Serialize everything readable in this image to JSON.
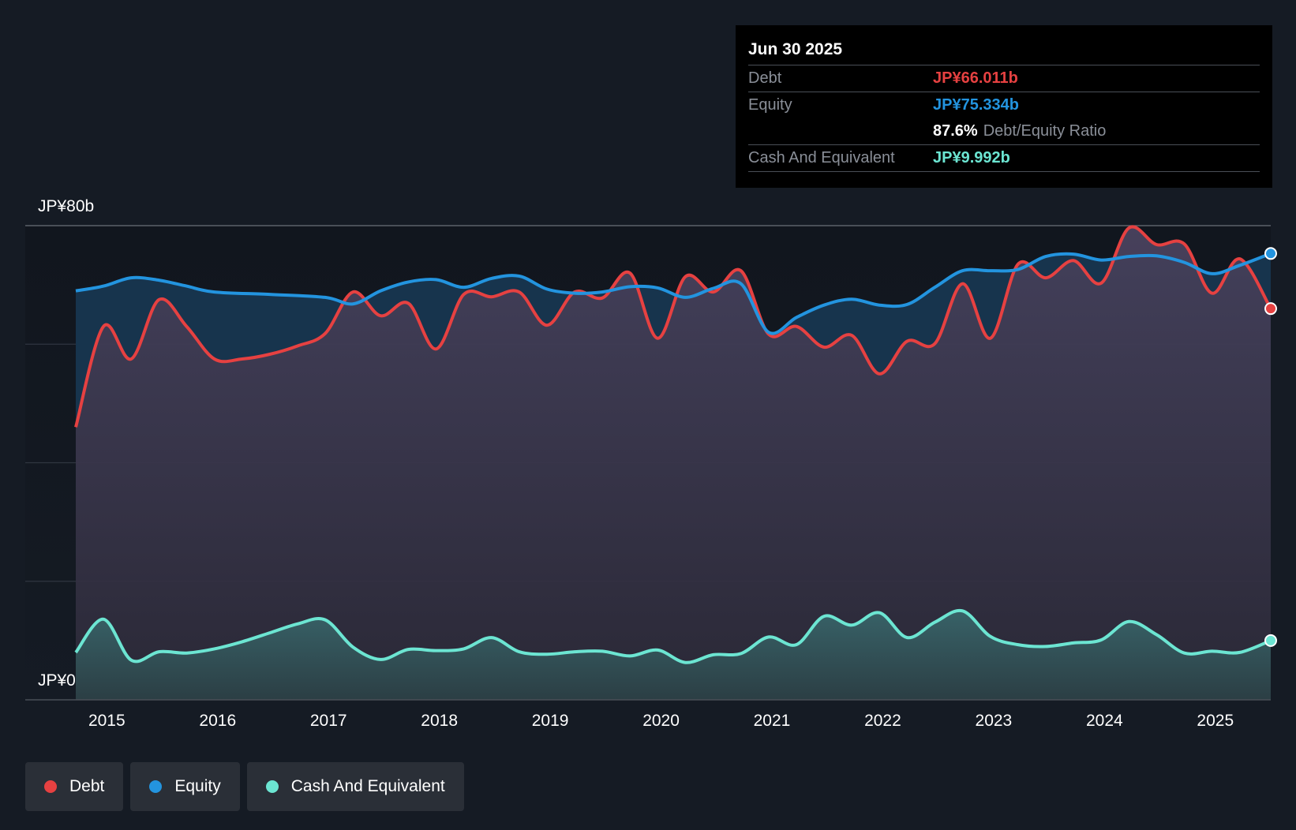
{
  "tooltip": {
    "date": "Jun 30 2025",
    "debt_label": "Debt",
    "debt_value": "JP¥66.011b",
    "equity_label": "Equity",
    "equity_value": "JP¥75.334b",
    "ratio_value": "87.6%",
    "ratio_label": "Debt/Equity Ratio",
    "cash_label": "Cash And Equivalent",
    "cash_value": "JP¥9.992b"
  },
  "legend": [
    {
      "label": "Debt",
      "color": "#e64141"
    },
    {
      "label": "Equity",
      "color": "#2394df"
    },
    {
      "label": "Cash And Equivalent",
      "color": "#6ce5d2"
    }
  ],
  "chart_data": {
    "type": "area",
    "ylim": [
      0,
      80
    ],
    "y_tick_labels": [
      "JP¥0",
      "JP¥80b"
    ],
    "x_ticks": [
      "2015",
      "2016",
      "2017",
      "2018",
      "2019",
      "2020",
      "2021",
      "2022",
      "2023",
      "2024",
      "2025"
    ],
    "xlim": [
      2014.72,
      2025.5
    ],
    "series": [
      {
        "name": "Debt",
        "color": "#e64141",
        "points": [
          [
            2014.72,
            46
          ],
          [
            2014.97,
            63
          ],
          [
            2015.22,
            57.5
          ],
          [
            2015.47,
            67.5
          ],
          [
            2015.72,
            63
          ],
          [
            2015.97,
            57.5
          ],
          [
            2016.22,
            57.5
          ],
          [
            2016.47,
            58.3
          ],
          [
            2016.72,
            59.7
          ],
          [
            2016.97,
            61.8
          ],
          [
            2017.22,
            68.8
          ],
          [
            2017.47,
            64.8
          ],
          [
            2017.72,
            66.9
          ],
          [
            2017.97,
            59.2
          ],
          [
            2018.22,
            68.4
          ],
          [
            2018.47,
            68
          ],
          [
            2018.72,
            68.8
          ],
          [
            2018.97,
            63.2
          ],
          [
            2019.22,
            68.8
          ],
          [
            2019.47,
            67.8
          ],
          [
            2019.72,
            72
          ],
          [
            2019.97,
            61
          ],
          [
            2020.22,
            71.4
          ],
          [
            2020.47,
            68.8
          ],
          [
            2020.72,
            72.4
          ],
          [
            2020.97,
            61.7
          ],
          [
            2021.22,
            63
          ],
          [
            2021.47,
            59.5
          ],
          [
            2021.72,
            61.5
          ],
          [
            2021.97,
            55
          ],
          [
            2022.22,
            60.5
          ],
          [
            2022.47,
            60.1
          ],
          [
            2022.72,
            70.2
          ],
          [
            2022.97,
            61
          ],
          [
            2023.22,
            73.5
          ],
          [
            2023.47,
            71.2
          ],
          [
            2023.72,
            74.1
          ],
          [
            2023.97,
            70.3
          ],
          [
            2024.22,
            79.6
          ],
          [
            2024.47,
            76.8
          ],
          [
            2024.72,
            76.9
          ],
          [
            2024.97,
            68.6
          ],
          [
            2025.22,
            74.4
          ],
          [
            2025.5,
            66
          ]
        ]
      },
      {
        "name": "Equity",
        "color": "#2394df",
        "points": [
          [
            2014.72,
            69
          ],
          [
            2014.97,
            69.8
          ],
          [
            2015.22,
            71.2
          ],
          [
            2015.47,
            70.8
          ],
          [
            2015.72,
            69.8
          ],
          [
            2015.97,
            68.8
          ],
          [
            2016.47,
            68.4
          ],
          [
            2016.97,
            67.9
          ],
          [
            2017.22,
            66.8
          ],
          [
            2017.47,
            69
          ],
          [
            2017.72,
            70.5
          ],
          [
            2017.97,
            70.9
          ],
          [
            2018.22,
            69.6
          ],
          [
            2018.47,
            71.1
          ],
          [
            2018.72,
            71.5
          ],
          [
            2018.97,
            69.3
          ],
          [
            2019.22,
            68.6
          ],
          [
            2019.47,
            68.8
          ],
          [
            2019.72,
            69.7
          ],
          [
            2019.97,
            69.5
          ],
          [
            2020.22,
            67.9
          ],
          [
            2020.47,
            69.4
          ],
          [
            2020.72,
            70.2
          ],
          [
            2020.97,
            62
          ],
          [
            2021.22,
            64.5
          ],
          [
            2021.47,
            66.6
          ],
          [
            2021.72,
            67.6
          ],
          [
            2021.97,
            66.6
          ],
          [
            2022.22,
            66.7
          ],
          [
            2022.47,
            69.6
          ],
          [
            2022.72,
            72.4
          ],
          [
            2022.97,
            72.4
          ],
          [
            2023.22,
            72.6
          ],
          [
            2023.47,
            74.8
          ],
          [
            2023.72,
            75.2
          ],
          [
            2023.97,
            74.2
          ],
          [
            2024.22,
            74.8
          ],
          [
            2024.47,
            74.9
          ],
          [
            2024.72,
            73.8
          ],
          [
            2024.97,
            71.9
          ],
          [
            2025.22,
            73.3
          ],
          [
            2025.5,
            75.3
          ]
        ]
      },
      {
        "name": "Cash And Equivalent",
        "color": "#6ce5d2",
        "points": [
          [
            2014.72,
            8
          ],
          [
            2014.97,
            13.6
          ],
          [
            2015.22,
            6.7
          ],
          [
            2015.47,
            8.1
          ],
          [
            2015.72,
            7.9
          ],
          [
            2015.97,
            8.6
          ],
          [
            2016.22,
            9.8
          ],
          [
            2016.47,
            11.3
          ],
          [
            2016.72,
            12.8
          ],
          [
            2016.97,
            13.5
          ],
          [
            2017.22,
            8.9
          ],
          [
            2017.47,
            6.8
          ],
          [
            2017.72,
            8.5
          ],
          [
            2017.97,
            8.3
          ],
          [
            2018.22,
            8.6
          ],
          [
            2018.47,
            10.5
          ],
          [
            2018.72,
            8.1
          ],
          [
            2018.97,
            7.7
          ],
          [
            2019.22,
            8.1
          ],
          [
            2019.47,
            8.2
          ],
          [
            2019.72,
            7.4
          ],
          [
            2019.97,
            8.4
          ],
          [
            2020.22,
            6.3
          ],
          [
            2020.47,
            7.6
          ],
          [
            2020.72,
            7.8
          ],
          [
            2020.97,
            10.6
          ],
          [
            2021.22,
            9.3
          ],
          [
            2021.47,
            14.1
          ],
          [
            2021.72,
            12.6
          ],
          [
            2021.97,
            14.7
          ],
          [
            2022.22,
            10.5
          ],
          [
            2022.47,
            13.1
          ],
          [
            2022.72,
            15
          ],
          [
            2022.97,
            10.7
          ],
          [
            2023.22,
            9.3
          ],
          [
            2023.47,
            9
          ],
          [
            2023.72,
            9.6
          ],
          [
            2023.97,
            10.1
          ],
          [
            2024.22,
            13.2
          ],
          [
            2024.47,
            11
          ],
          [
            2024.72,
            7.9
          ],
          [
            2024.97,
            8.2
          ],
          [
            2025.22,
            8
          ],
          [
            2025.5,
            10
          ]
        ]
      }
    ],
    "grid": true,
    "legend_position": "bottom-left"
  }
}
